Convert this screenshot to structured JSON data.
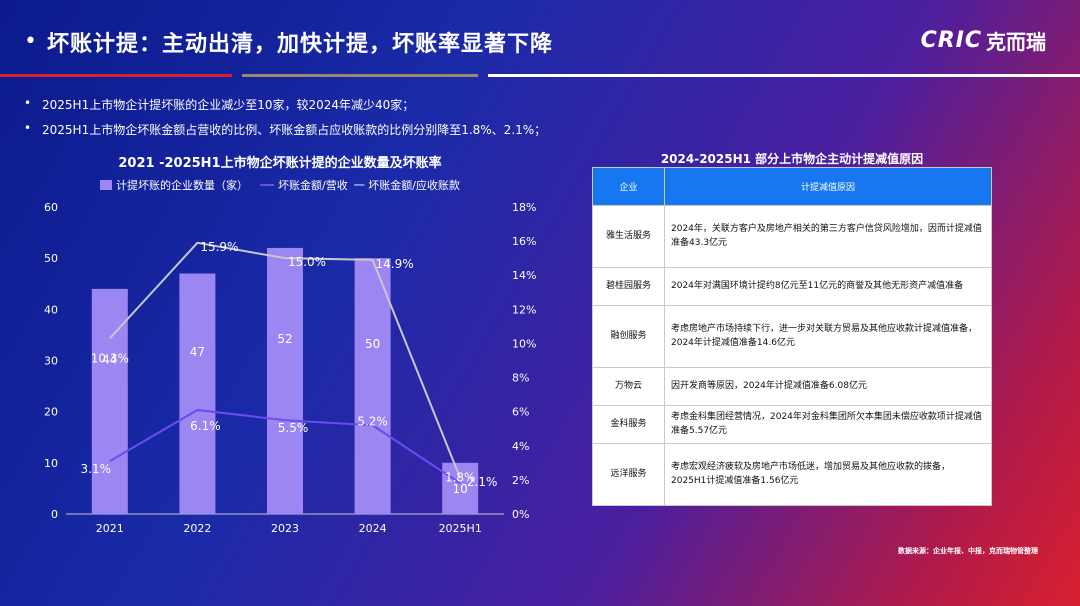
{
  "header": {
    "bullet": "•",
    "title": "坏账计提：主动出清，加快计提，坏账率显著下降",
    "logo_en": "CRIC",
    "logo_cn": "克而瑞"
  },
  "bullets": [
    "2025H1上市物企计提坏账的企业减少至10家，较2024年减少40家；",
    "2025H1上市物企坏账金额占营收的比例、坏账金额占应收账款的比例分别降至1.8%、2.1%；"
  ],
  "chart_data": {
    "type": "bar",
    "title": "2021 -2025H1上市物企坏账计提的企业数量及坏账率",
    "categories": [
      "2021",
      "2022",
      "2023",
      "2024",
      "2025H1"
    ],
    "series": [
      {
        "name": "计提坏账的企业数量（家）",
        "type": "bar",
        "axis": "left",
        "values": [
          44,
          47,
          52,
          50,
          10
        ],
        "labels": [
          "44",
          "47",
          "52",
          "50",
          "10"
        ]
      },
      {
        "name": "坏账金额/营收",
        "type": "line",
        "axis": "right",
        "values": [
          3.1,
          6.1,
          5.5,
          5.2,
          1.8
        ],
        "labels": [
          "3.1%",
          "6.1%",
          "5.5%",
          "5.2%",
          "1.8%"
        ]
      },
      {
        "name": "坏账金额/应收账款",
        "type": "line",
        "axis": "right",
        "values": [
          10.3,
          15.9,
          15.0,
          14.9,
          2.1
        ],
        "labels": [
          "10.3%",
          "15.9%",
          "15.0%",
          "14.9%",
          "2.1%"
        ]
      }
    ],
    "legend_text": [
      "计提坏账的企业数量（家）",
      "坏账金额/营收",
      "一 坏账金额/应收账款"
    ],
    "y_left": {
      "range": [
        0,
        60
      ],
      "ticks": [
        "0",
        "10",
        "20",
        "30",
        "40",
        "50",
        "60"
      ]
    },
    "y_right": {
      "range": [
        0,
        18
      ],
      "ticks": [
        "0%",
        "2%",
        "4%",
        "6%",
        "8%",
        "10%",
        "12%",
        "14%",
        "16%",
        "18%"
      ]
    },
    "grid": false,
    "legend_position": "top",
    "colors": {
      "bar": "#9b86f2",
      "line_revenue": "#6a4cf0",
      "line_receivable": "#c8c8d0"
    }
  },
  "table": {
    "title": "2024-2025H1 部分上市物企主动计提减值原因",
    "headers": [
      "企业",
      "计提减值原因"
    ],
    "rows": [
      {
        "company": "雅生活服务",
        "reason": "2024年，关联方客户及房地产相关的第三方客户信贷风险增加，因而计提减值准备43.3亿元"
      },
      {
        "company": "碧桂园服务",
        "reason": "2024年对满国环境计提约8亿元至11亿元的商誉及其他无形资产减值准备"
      },
      {
        "company": "融创服务",
        "reason": "考虑房地产市场持续下行，进一步对关联方贸易及其他应收款计提减值准备，2024年计提减值准备14.6亿元"
      },
      {
        "company": "万物云",
        "reason": "因开发商等原因，2024年计提减值准备6.08亿元"
      },
      {
        "company": "金科服务",
        "reason": "考虑金科集团经营情况，2024年对金科集团所欠本集团未偿应收款项计提减值准备5.57亿元"
      },
      {
        "company": "远洋服务",
        "reason": "考虑宏观经济疲软及房地产市场低迷，增加贸易及其他应收款的拨备，2025H1计提减值准备1.56亿元"
      }
    ]
  },
  "source": "数据来源：企业年报、中报，克而瑞物管整理"
}
